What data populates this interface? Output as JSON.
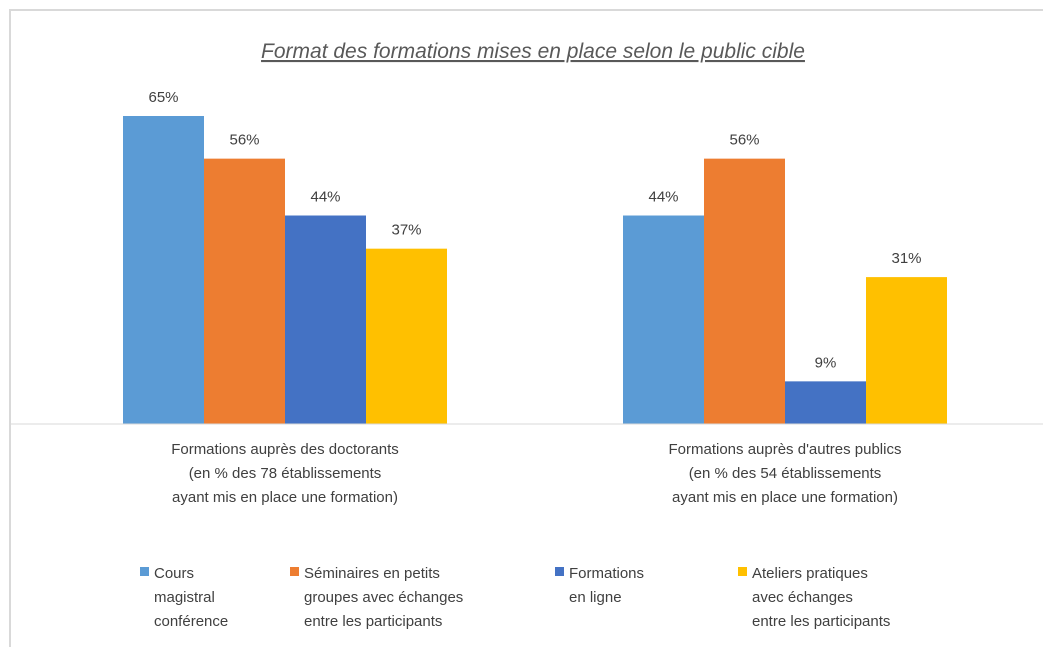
{
  "chart_data": {
    "type": "bar",
    "title": "Format des formations mises en place selon le public cible",
    "categories": [
      "Formations auprès des doctorants\n(en % des 78  établissements\nayant mis en place une formation)",
      "Formations auprès d'autres publics\n(en % des 54  établissements\nayant mis en place une formation)"
    ],
    "series": [
      {
        "name": "Cours\nmagistral\nconférence",
        "color": "#5b9bd5",
        "values": [
          65,
          44
        ],
        "value_labels": [
          "65%",
          "44%"
        ]
      },
      {
        "name": "Séminaires en petits\ngroupes avec échanges\nentre les participants",
        "color": "#ed7d31",
        "values": [
          56,
          56
        ],
        "value_labels": [
          "56%",
          "56%"
        ]
      },
      {
        "name": "Formations\nen ligne",
        "color": "#4472c4",
        "values": [
          44,
          9
        ],
        "value_labels": [
          "44%",
          "9%"
        ]
      },
      {
        "name": "Ateliers pratiques\navec échanges\nentre les participants",
        "color": "#ffc000",
        "values": [
          37,
          31
        ],
        "value_labels": [
          "37%",
          "31%"
        ]
      }
    ],
    "ylim": [
      0,
      70
    ]
  }
}
